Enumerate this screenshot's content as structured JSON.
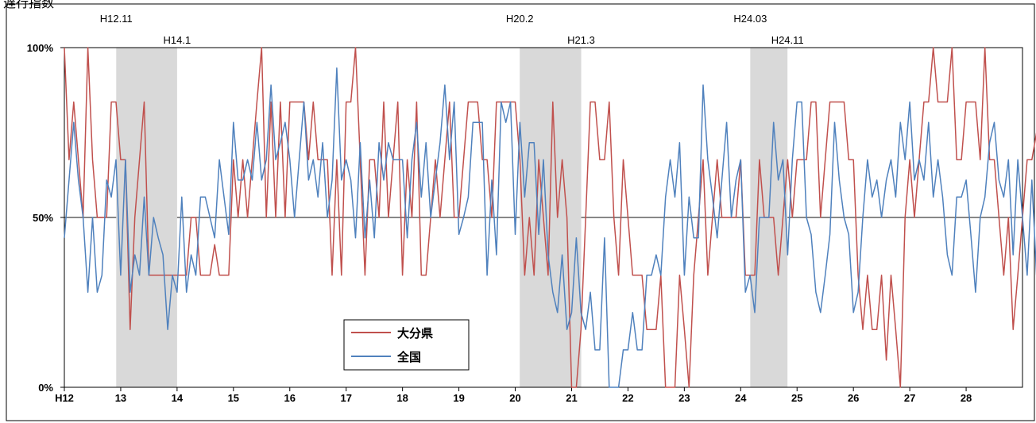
{
  "title": "遅行指数",
  "chart_data": {
    "type": "line",
    "title": "遅行指数",
    "ylim": [
      0,
      100
    ],
    "y_tick_labels": [
      "0%",
      "50%",
      "100%"
    ],
    "x_tick_labels": [
      "H12",
      "13",
      "14",
      "15",
      "16",
      "17",
      "18",
      "19",
      "20",
      "21",
      "22",
      "23",
      "24",
      "25",
      "26",
      "27",
      "28"
    ],
    "x_start": 12,
    "x_end": 29,
    "points_per_year": 12,
    "reference_line": 50,
    "recession_periods": [
      {
        "start": 12.92,
        "end": 14.0,
        "start_label": "H12.11",
        "end_label": "H14.1"
      },
      {
        "start": 20.08,
        "end": 21.17,
        "start_label": "H20.2",
        "end_label": "H21.3"
      },
      {
        "start": 24.17,
        "end": 24.83,
        "start_label": "H24.03",
        "end_label": "H24.11"
      }
    ],
    "legend": {
      "position": "center-bottom",
      "entries": [
        "大分県",
        "全国"
      ]
    },
    "colors": {
      "大分県": "#c0504d",
      "全国": "#4f81bd",
      "recession": "#d9d9d9"
    },
    "series": [
      {
        "name": "大分県",
        "values": [
          100,
          67,
          84,
          67,
          50,
          100,
          67,
          50,
          50,
          50,
          84,
          84,
          67,
          67,
          17,
          50,
          67,
          84,
          33,
          33,
          33,
          33,
          33,
          33,
          33,
          33,
          33,
          50,
          50,
          33,
          33,
          33,
          42,
          33,
          33,
          33,
          67,
          50,
          67,
          50,
          67,
          84,
          100,
          50,
          84,
          50,
          84,
          50,
          84,
          84,
          84,
          84,
          67,
          84,
          67,
          67,
          67,
          33,
          67,
          33,
          84,
          84,
          100,
          67,
          33,
          67,
          67,
          50,
          84,
          50,
          67,
          84,
          33,
          67,
          50,
          84,
          33,
          33,
          50,
          67,
          50,
          67,
          84,
          50,
          50,
          67,
          84,
          84,
          84,
          67,
          67,
          50,
          84,
          84,
          84,
          84,
          84,
          67,
          33,
          50,
          33,
          67,
          50,
          33,
          84,
          50,
          67,
          50,
          0,
          0,
          17,
          50,
          84,
          84,
          67,
          67,
          84,
          50,
          33,
          67,
          50,
          33,
          33,
          33,
          17,
          17,
          17,
          33,
          0,
          0,
          0,
          33,
          17,
          0,
          33,
          50,
          67,
          33,
          50,
          67,
          50,
          50,
          50,
          50,
          67,
          33,
          33,
          33,
          67,
          50,
          50,
          50,
          33,
          50,
          67,
          50,
          67,
          67,
          67,
          84,
          84,
          50,
          67,
          84,
          84,
          84,
          84,
          67,
          67,
          33,
          17,
          33,
          17,
          17,
          33,
          8,
          33,
          17,
          0,
          50,
          67,
          50,
          67,
          84,
          84,
          100,
          84,
          84,
          84,
          100,
          67,
          67,
          84,
          84,
          84,
          67,
          100,
          67,
          67,
          50,
          33,
          50,
          17,
          33,
          50,
          67,
          67,
          75,
          50,
          67,
          50,
          50,
          67,
          84,
          84,
          50,
          67,
          67,
          67,
          33,
          50,
          67,
          67,
          33,
          50,
          50,
          33,
          50,
          50
        ]
      },
      {
        "name": "全国",
        "values": [
          44,
          61,
          78,
          61,
          50,
          28,
          50,
          28,
          33,
          61,
          56,
          67,
          33,
          67,
          28,
          39,
          33,
          56,
          33,
          50,
          44,
          39,
          17,
          33,
          28,
          56,
          28,
          39,
          33,
          56,
          56,
          50,
          44,
          67,
          56,
          45,
          78,
          61,
          61,
          67,
          61,
          78,
          61,
          67,
          89,
          67,
          72,
          78,
          67,
          50,
          67,
          84,
          61,
          67,
          56,
          72,
          50,
          61,
          94,
          61,
          67,
          61,
          44,
          72,
          44,
          61,
          44,
          72,
          61,
          72,
          67,
          67,
          67,
          44,
          67,
          78,
          56,
          72,
          50,
          61,
          72,
          89,
          67,
          84,
          45,
          50,
          56,
          78,
          78,
          78,
          33,
          61,
          39,
          84,
          78,
          84,
          45,
          78,
          56,
          72,
          72,
          45,
          67,
          39,
          28,
          22,
          39,
          17,
          22,
          44,
          22,
          17,
          28,
          11,
          11,
          44,
          0,
          0,
          0,
          11,
          11,
          22,
          11,
          11,
          33,
          33,
          39,
          33,
          56,
          67,
          56,
          72,
          33,
          56,
          44,
          44,
          89,
          67,
          56,
          44,
          61,
          78,
          50,
          61,
          67,
          28,
          33,
          22,
          50,
          50,
          50,
          78,
          61,
          67,
          39,
          67,
          84,
          84,
          50,
          45,
          28,
          22,
          33,
          45,
          78,
          61,
          50,
          45,
          22,
          28,
          50,
          67,
          56,
          61,
          50,
          61,
          67,
          56,
          78,
          67,
          84,
          61,
          67,
          61,
          78,
          56,
          67,
          56,
          39,
          33,
          56,
          56,
          61,
          45,
          28,
          50,
          56,
          72,
          78,
          61,
          56,
          67,
          39,
          67,
          50,
          33,
          61,
          33,
          33,
          45,
          61,
          61,
          45,
          67,
          19,
          61,
          61,
          45,
          61,
          72,
          61,
          44,
          56,
          61,
          75
        ]
      }
    ]
  }
}
